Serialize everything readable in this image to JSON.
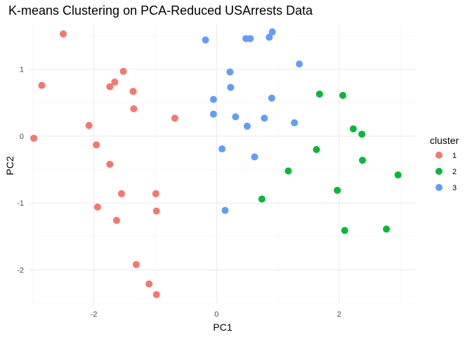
{
  "chart_data": {
    "type": "scatter",
    "title": "K-means Clustering on PCA-Reduced USArrests Data",
    "xlabel": "PC1",
    "ylabel": "PC2",
    "xlim": [
      -3.05,
      3.25
    ],
    "ylim": [
      -2.5,
      1.68
    ],
    "x_ticks": [
      -2,
      0,
      2
    ],
    "y_ticks": [
      -2,
      -1,
      0,
      1
    ],
    "x_tick_labels": [
      "-2",
      "0",
      "2"
    ],
    "y_tick_labels": [
      "-2",
      "-1",
      "0",
      "1"
    ],
    "grid": true,
    "legend": {
      "title": "cluster",
      "position": "right"
    },
    "series": [
      {
        "name": "1",
        "color": "#F8766D",
        "points": [
          [
            -2.5,
            1.53
          ],
          [
            -2.85,
            0.76
          ],
          [
            -1.52,
            0.97
          ],
          [
            -1.66,
            0.81
          ],
          [
            -1.74,
            0.74
          ],
          [
            -1.36,
            0.67
          ],
          [
            -1.35,
            0.41
          ],
          [
            -0.68,
            0.27
          ],
          [
            -2.08,
            0.16
          ],
          [
            -2.98,
            -0.03
          ],
          [
            -1.96,
            -0.13
          ],
          [
            -1.74,
            -0.42
          ],
          [
            -1.55,
            -0.86
          ],
          [
            -0.99,
            -0.86
          ],
          [
            -1.94,
            -1.06
          ],
          [
            -0.98,
            -1.12
          ],
          [
            -1.63,
            -1.26
          ],
          [
            -1.31,
            -1.92
          ],
          [
            -1.1,
            -2.21
          ],
          [
            -0.98,
            -2.37
          ]
        ]
      },
      {
        "name": "2",
        "color": "#00BA38",
        "points": [
          [
            1.68,
            0.63
          ],
          [
            2.06,
            0.61
          ],
          [
            2.23,
            0.11
          ],
          [
            2.37,
            0.03
          ],
          [
            1.63,
            -0.2
          ],
          [
            2.38,
            -0.36
          ],
          [
            1.17,
            -0.52
          ],
          [
            2.96,
            -0.58
          ],
          [
            1.97,
            -0.81
          ],
          [
            0.74,
            -0.94
          ],
          [
            2.09,
            -1.41
          ],
          [
            2.77,
            -1.39
          ]
        ]
      },
      {
        "name": "3",
        "color": "#619CFF",
        "points": [
          [
            -0.18,
            1.44
          ],
          [
            0.48,
            1.46
          ],
          [
            0.55,
            1.46
          ],
          [
            0.86,
            1.48
          ],
          [
            0.91,
            1.56
          ],
          [
            1.35,
            1.08
          ],
          [
            0.22,
            0.96
          ],
          [
            0.23,
            0.73
          ],
          [
            -0.05,
            0.55
          ],
          [
            0.9,
            0.57
          ],
          [
            -0.05,
            0.33
          ],
          [
            0.31,
            0.29
          ],
          [
            0.78,
            0.27
          ],
          [
            0.5,
            0.15
          ],
          [
            1.27,
            0.2
          ],
          [
            0.09,
            -0.19
          ],
          [
            0.62,
            -0.31
          ],
          [
            0.14,
            -1.11
          ]
        ]
      }
    ]
  }
}
